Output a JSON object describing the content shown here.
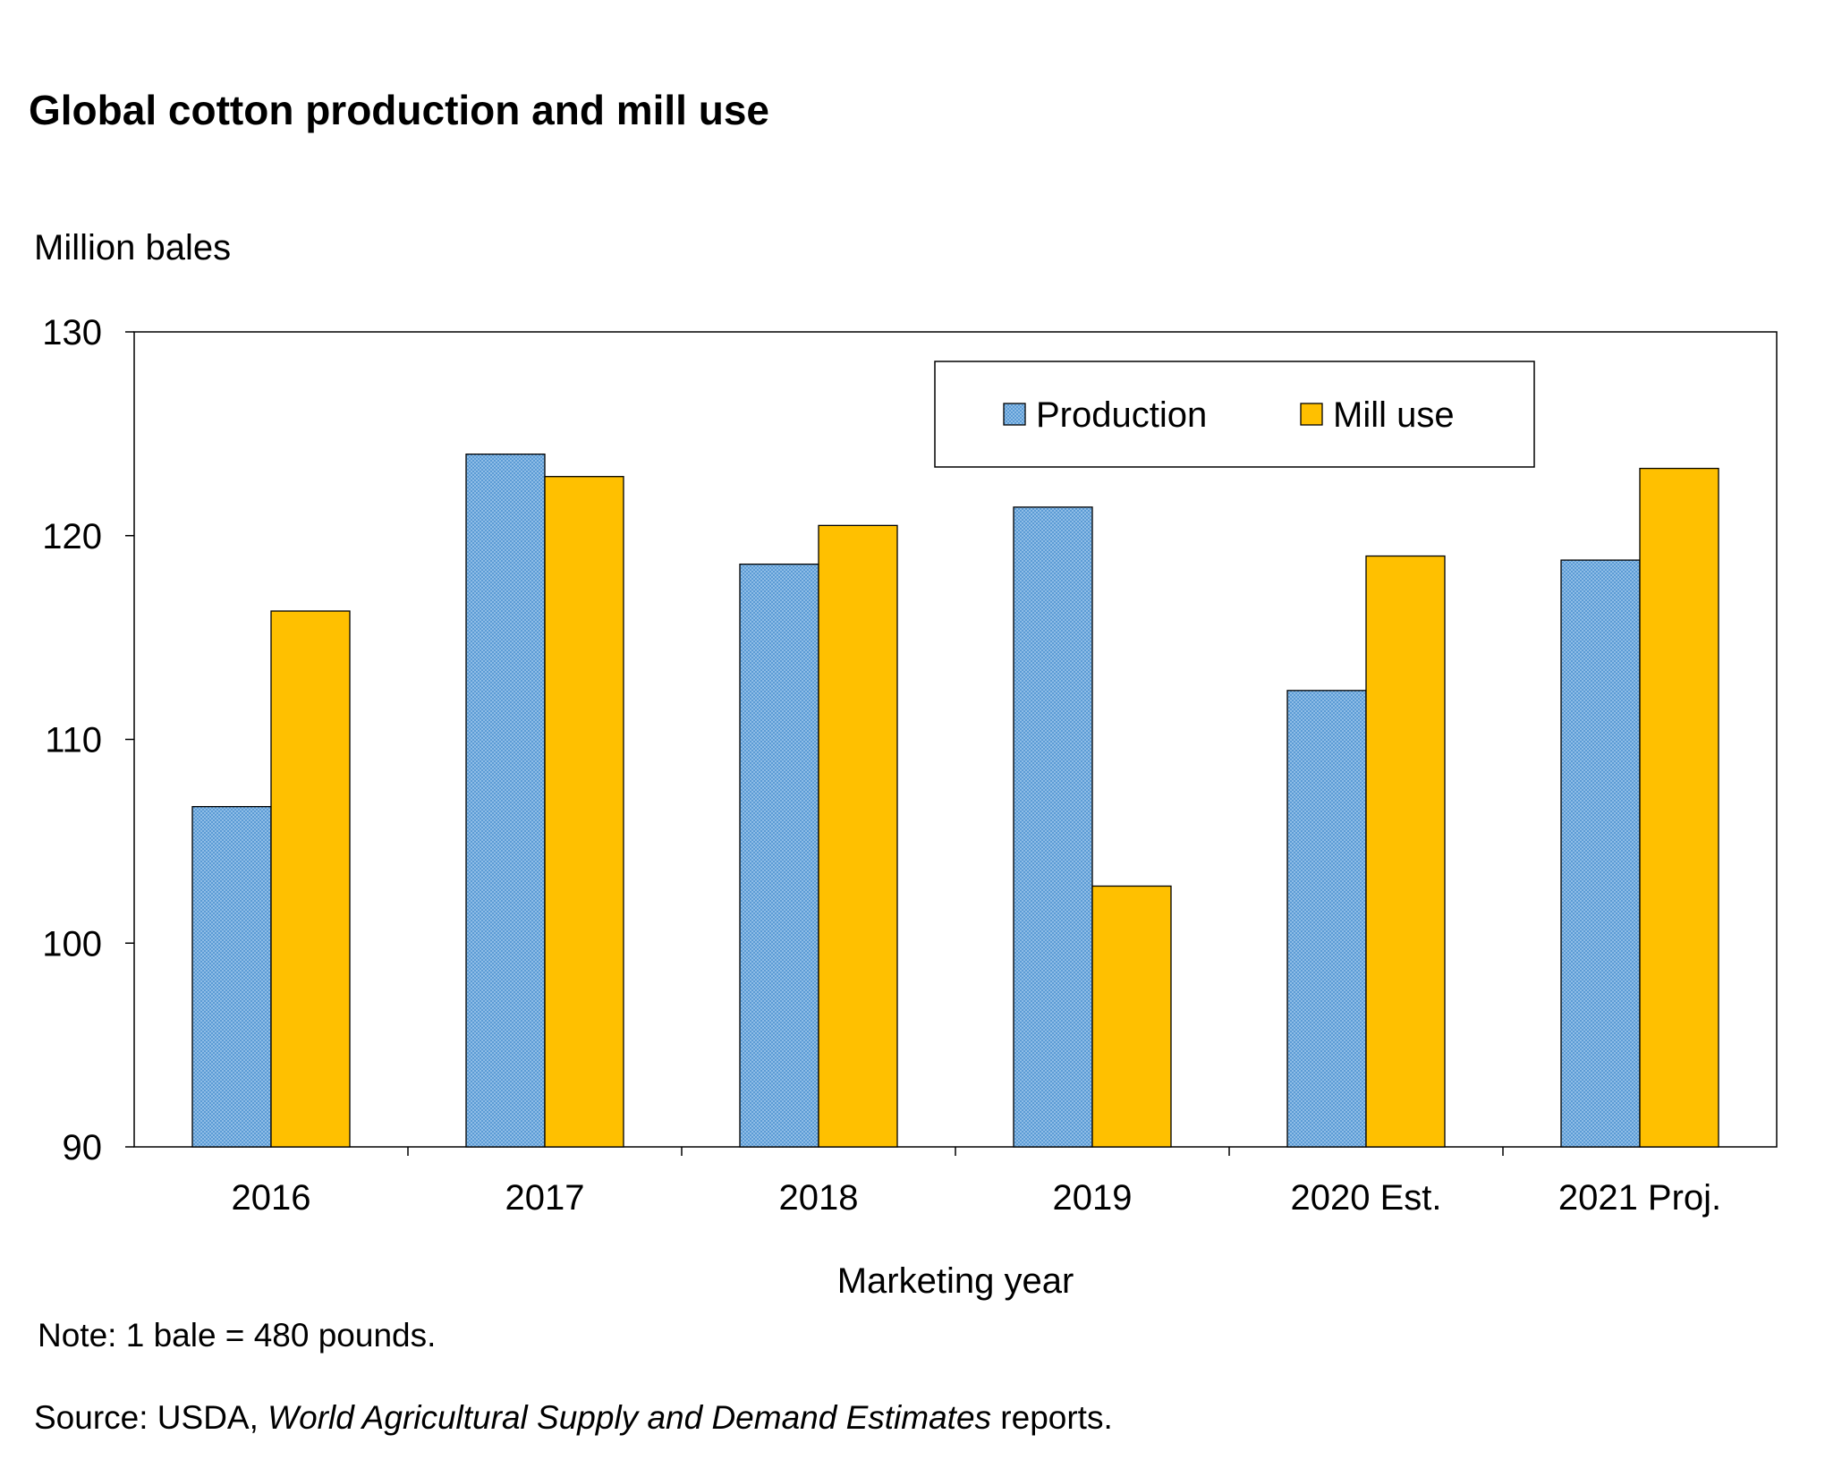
{
  "colors": {
    "production": "#5b9bd5",
    "mill_use": "#ffc000",
    "axis": "#000000",
    "background": "#ffffff"
  },
  "chart_data": {
    "type": "bar",
    "title": "Global cotton production and mill use",
    "ylabel": "Million bales",
    "xlabel": "Marketing year",
    "categories": [
      "2016",
      "2017",
      "2018",
      "2019",
      "2020 Est.",
      "2021 Proj."
    ],
    "series": [
      {
        "name": "Production",
        "values": [
          106.7,
          124.0,
          118.6,
          121.4,
          112.4,
          118.8
        ]
      },
      {
        "name": "Mill use",
        "values": [
          116.3,
          122.9,
          120.5,
          102.8,
          119.0,
          123.3
        ]
      }
    ],
    "ylim": [
      90,
      130
    ],
    "yticks": [
      "90",
      "100",
      "110",
      "120",
      "130"
    ],
    "grid": false,
    "legend_position": "top-right"
  },
  "footer": {
    "note": "Note: 1 bale = 480 pounds.",
    "source_prefix": "Source: USDA, ",
    "source_title": "World Agricultural Supply and Demand Estimates",
    "source_suffix": " reports."
  }
}
